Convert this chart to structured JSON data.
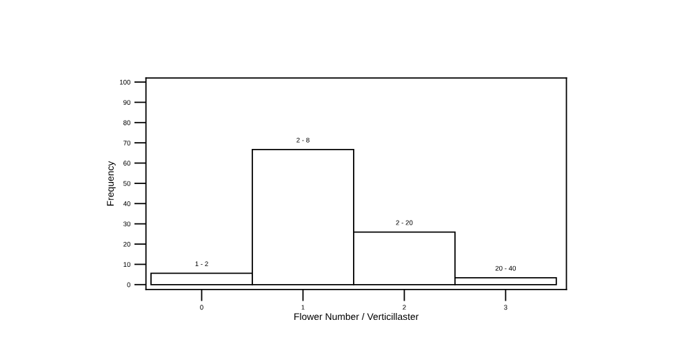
{
  "chart_data": {
    "type": "histogram",
    "xlabel": "Flower Number / Verticillaster",
    "ylabel": "Frequency",
    "bins": [
      -0.5,
      0.5,
      1.5,
      2.5,
      3.5
    ],
    "values": [
      5.6,
      66.7,
      25.9,
      3.4
    ],
    "color": "#ffffff",
    "xlim": [
      -0.55,
      3.6
    ],
    "ylim": [
      -2.4,
      102
    ],
    "xticks": [
      0,
      1,
      2,
      3
    ],
    "yticks": [
      0,
      10,
      20,
      30,
      40,
      50,
      60,
      70,
      80,
      90,
      100
    ],
    "annotations": [
      {
        "text": "1 - 2",
        "x": 0,
        "y": 5.6
      },
      {
        "text": "2 - 8",
        "x": 1,
        "y": 66.7
      },
      {
        "text": "2 - 20",
        "x": 2,
        "y": 25.9
      },
      {
        "text": "20 - 40",
        "x": 3,
        "y": 3.4
      }
    ],
    "grid": false,
    "legend": false
  }
}
